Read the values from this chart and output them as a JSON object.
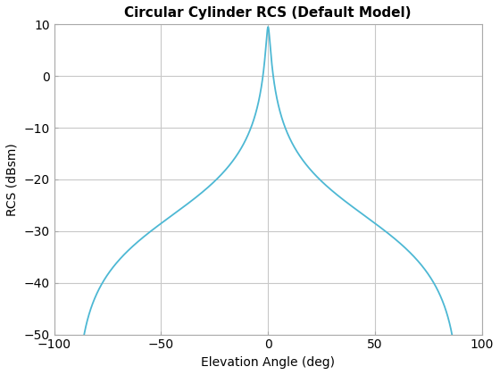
{
  "title": "Circular Cylinder RCS (Default Model)",
  "xlabel": "Elevation Angle (deg)",
  "ylabel": "RCS (dBsm)",
  "xlim": [
    -100,
    100
  ],
  "ylim": [
    -50,
    10
  ],
  "xticks": [
    -100,
    -50,
    0,
    50,
    100
  ],
  "yticks": [
    -50,
    -40,
    -30,
    -20,
    -10,
    0,
    10
  ],
  "line_color": "#4db8d4",
  "line_width": 1.3,
  "background_color": "#ffffff",
  "grid_color": "#c8c8c8",
  "title_fontsize": 11,
  "label_fontsize": 10
}
